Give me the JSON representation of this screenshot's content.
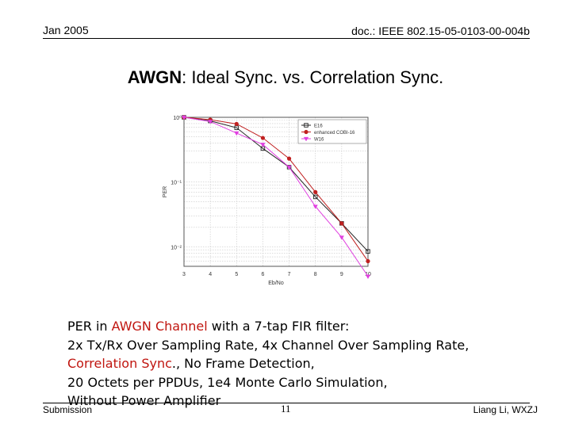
{
  "header": {
    "date": "Jan 2005",
    "doc": "doc.: IEEE 802.15-05-0103-00-004b"
  },
  "slide": {
    "title_bold": "AWGN",
    "title_rest": ": Ideal Sync. vs. Correlation Sync."
  },
  "chart_data": {
    "type": "line",
    "ylabel": "PER",
    "xlabel": "Eb/No",
    "x": [
      3,
      4,
      5,
      6,
      7,
      8,
      9,
      10
    ],
    "xlim": [
      3,
      10
    ],
    "ylim": [
      0.005,
      1
    ],
    "yscale": "log",
    "xticks": [
      "3",
      "4",
      "5",
      "6",
      "7",
      "8",
      "9",
      "10"
    ],
    "yticks": [
      {
        "value": 1,
        "label": "10⁰"
      },
      {
        "value": 0.1,
        "label": "10⁻¹"
      },
      {
        "value": 0.01,
        "label": "10⁻²"
      }
    ],
    "grid": true,
    "legend_position": "top-right",
    "series": [
      {
        "name": "E16",
        "color": "#222222",
        "marker": "square",
        "values": [
          1.0,
          0.88,
          0.69,
          0.33,
          0.17,
          0.059,
          0.023,
          0.0085
        ]
      },
      {
        "name": "enhanced COBI-16",
        "color": "#c02020",
        "marker": "circle",
        "values": [
          1.0,
          0.92,
          0.79,
          0.48,
          0.23,
          0.07,
          0.023,
          0.006
        ]
      },
      {
        "name": "W16",
        "color": "#e040e0",
        "marker": "triangle",
        "values": [
          1.0,
          0.86,
          0.57,
          0.38,
          0.17,
          0.042,
          0.014,
          0.0035
        ]
      }
    ]
  },
  "bullet": {
    "l1_a": "PER in ",
    "l1_red": "AWGN Channel",
    "l1_b": " with a 7-tap FIR filter:",
    "l2": "2x Tx/Rx Over Sampling Rate, 4x Channel Over Sampling Rate,",
    "l3_red": "Correlation Sync",
    "l3_b": "., No Frame Detection,",
    "l4": "20 Octets per PPDUs, 1e4 Monte Carlo Simulation,",
    "l5": "Without Power Amplifier"
  },
  "footer": {
    "left": "Submission",
    "page": "11",
    "right": "Liang Li, WXZJ"
  }
}
